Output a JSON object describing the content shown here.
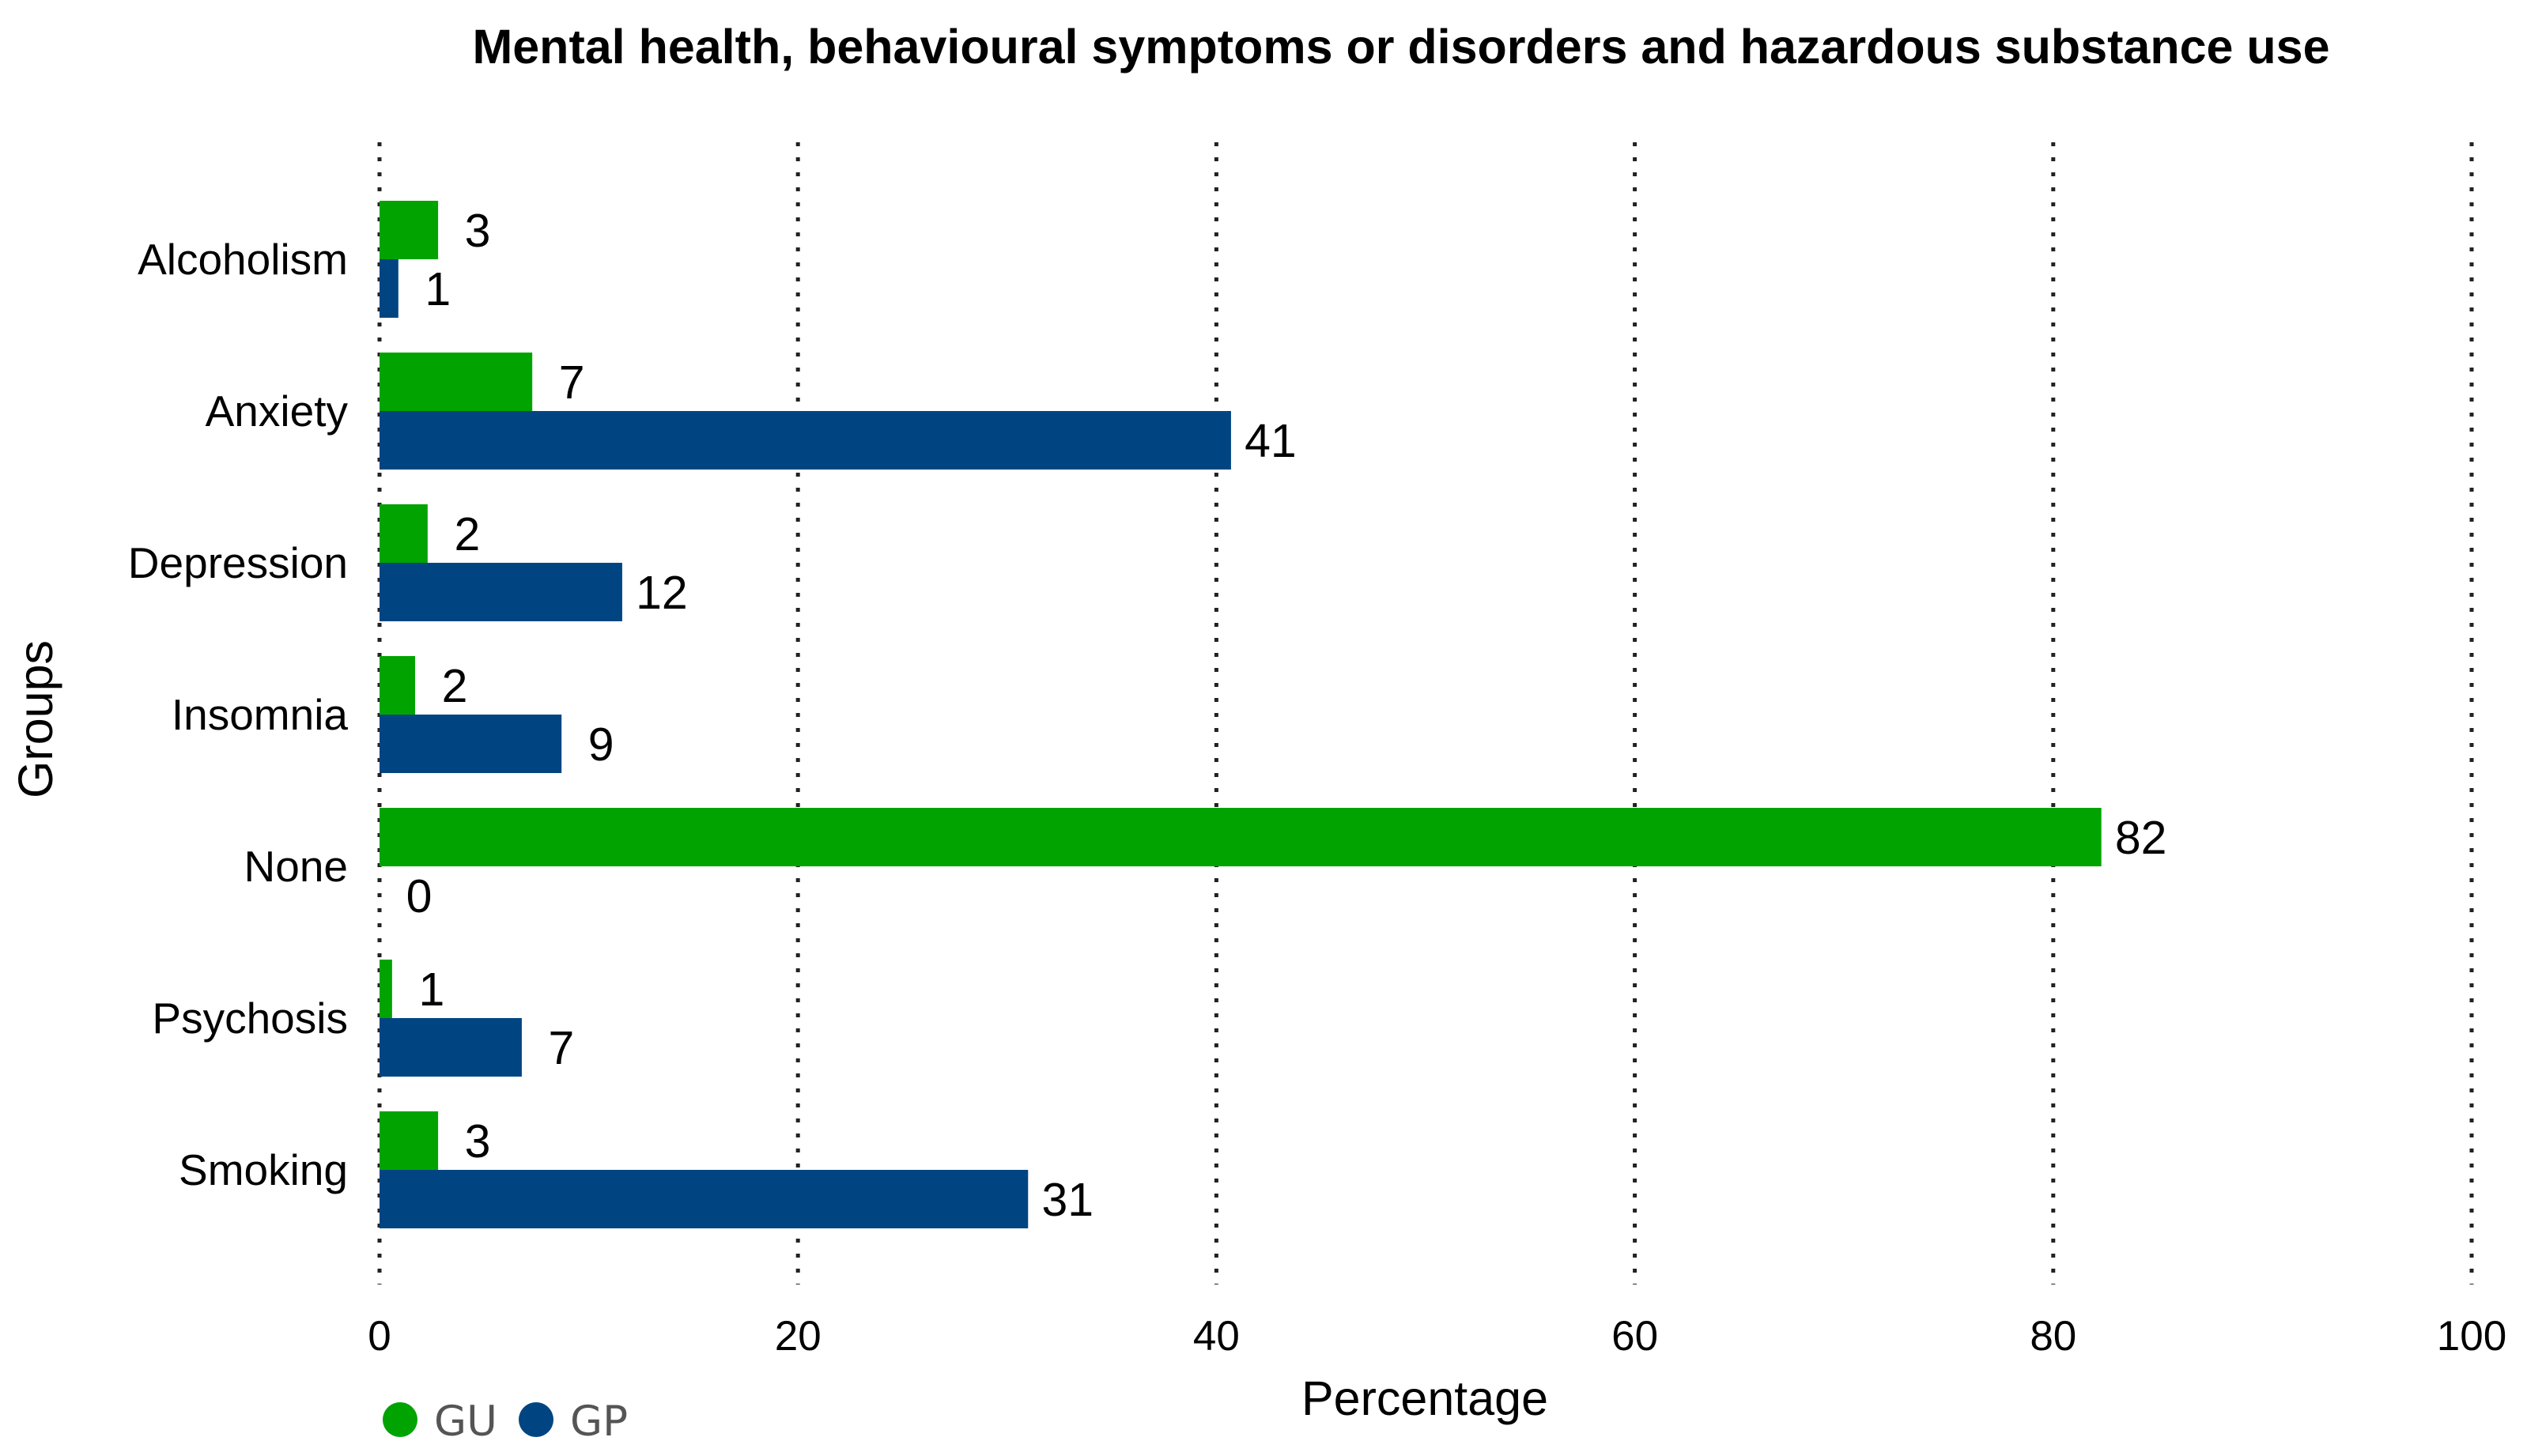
{
  "colors": {
    "GU": "#00a300",
    "GP": "#004582"
  },
  "chart_data": {
    "type": "bar",
    "orientation": "horizontal",
    "title": "Mental health, behavioural symptoms or disorders and hazardous substance use",
    "xlabel": "Percentage",
    "ylabel": "Groups",
    "xlim": [
      0,
      100
    ],
    "xticks": [
      "0",
      "20",
      "40",
      "60",
      "80",
      "100"
    ],
    "grid": true,
    "legend_position": "bottom-left",
    "categories": [
      "Alcoholism",
      "Anxiety",
      "Depression",
      "Insomnia",
      "None",
      "Psychosis",
      "Smoking"
    ],
    "series": [
      {
        "name": "GU",
        "values": [
          3,
          7,
          2,
          2,
          82,
          1,
          3
        ],
        "color": "#00a300"
      },
      {
        "name": "GP",
        "values": [
          1,
          41,
          12,
          9,
          0,
          7,
          31
        ],
        "color": "#004582"
      }
    ],
    "plotted_values": {
      "GU": [
        2.8,
        7.3,
        2.3,
        1.7,
        82.3,
        0.6,
        2.8
      ],
      "GP": [
        0.9,
        40.7,
        11.6,
        8.7,
        0,
        6.8,
        31
      ]
    }
  }
}
